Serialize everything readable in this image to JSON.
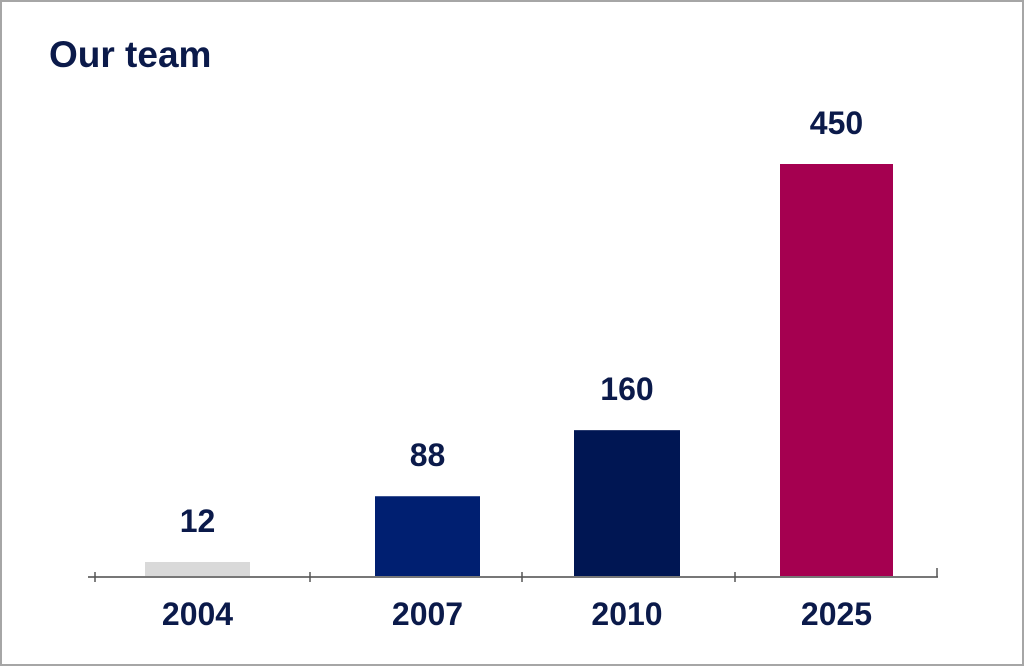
{
  "chart_data": {
    "type": "bar",
    "title": "Our team",
    "categories": [
      "2004",
      "2007",
      "2010",
      "2025"
    ],
    "values": [
      12,
      88,
      160,
      450
    ],
    "colors": [
      "#d9d9d9",
      "#001f71",
      "#001653",
      "#a50050"
    ],
    "xlabel": "",
    "ylabel": "",
    "ylim": [
      0,
      450
    ],
    "grid": false,
    "legend": "none"
  }
}
